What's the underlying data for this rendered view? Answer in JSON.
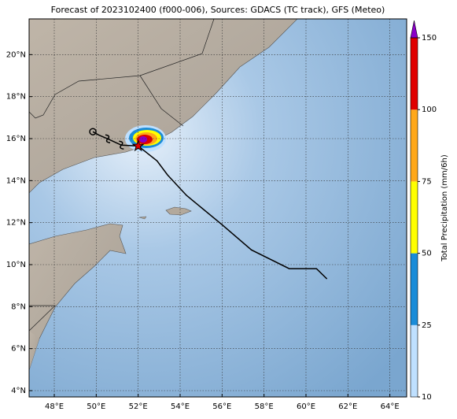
{
  "map": {
    "title": "Forecast of 2023102400 (f000-006), Sources: GDACS (TC track), GFS (Meteo)",
    "xlim": [
      46.8,
      64.8
    ],
    "ylim": [
      3.7,
      21.7
    ],
    "xticks": [
      {
        "value": 48,
        "label": "48°E"
      },
      {
        "value": 50,
        "label": "50°E"
      },
      {
        "value": 52,
        "label": "52°E"
      },
      {
        "value": 54,
        "label": "54°E"
      },
      {
        "value": 56,
        "label": "56°E"
      },
      {
        "value": 58,
        "label": "58°E"
      },
      {
        "value": 60,
        "label": "60°E"
      },
      {
        "value": 62,
        "label": "62°E"
      },
      {
        "value": 64,
        "label": "64°E"
      }
    ],
    "yticks": [
      {
        "value": 4,
        "label": "4°N"
      },
      {
        "value": 6,
        "label": "6°N"
      },
      {
        "value": 8,
        "label": "8°N"
      },
      {
        "value": 10,
        "label": "10°N"
      },
      {
        "value": 12,
        "label": "12°N"
      },
      {
        "value": 14,
        "label": "14°N"
      },
      {
        "value": 16,
        "label": "16°N"
      },
      {
        "value": 18,
        "label": "18°N"
      },
      {
        "value": 20,
        "label": "20°N"
      }
    ],
    "grid": true,
    "forecast_track": {
      "color": "#000000",
      "lon": [
        52.0,
        52.9,
        53.4,
        54.3,
        56.0,
        57.4,
        59.2,
        60.5,
        61.0
      ],
      "lat": [
        15.65,
        14.94,
        14.27,
        13.3,
        11.9,
        10.7,
        9.81,
        9.81,
        9.32
      ]
    },
    "past_track": {
      "color": "#000000",
      "lon": [
        52.0,
        51.2,
        50.55,
        50.1,
        49.84
      ],
      "lat": [
        15.65,
        15.69,
        15.99,
        16.18,
        16.33
      ]
    },
    "colorbar": {
      "label": "Total Precipitation (mm/6h)",
      "ticks": [
        10,
        25,
        50,
        75,
        100,
        150
      ],
      "colors": [
        "#bfe0ff",
        "#1a8cd8",
        "#ffff00",
        "#ffa81a",
        "#e00000"
      ],
      "extend_color": "#8a00c8"
    }
  }
}
